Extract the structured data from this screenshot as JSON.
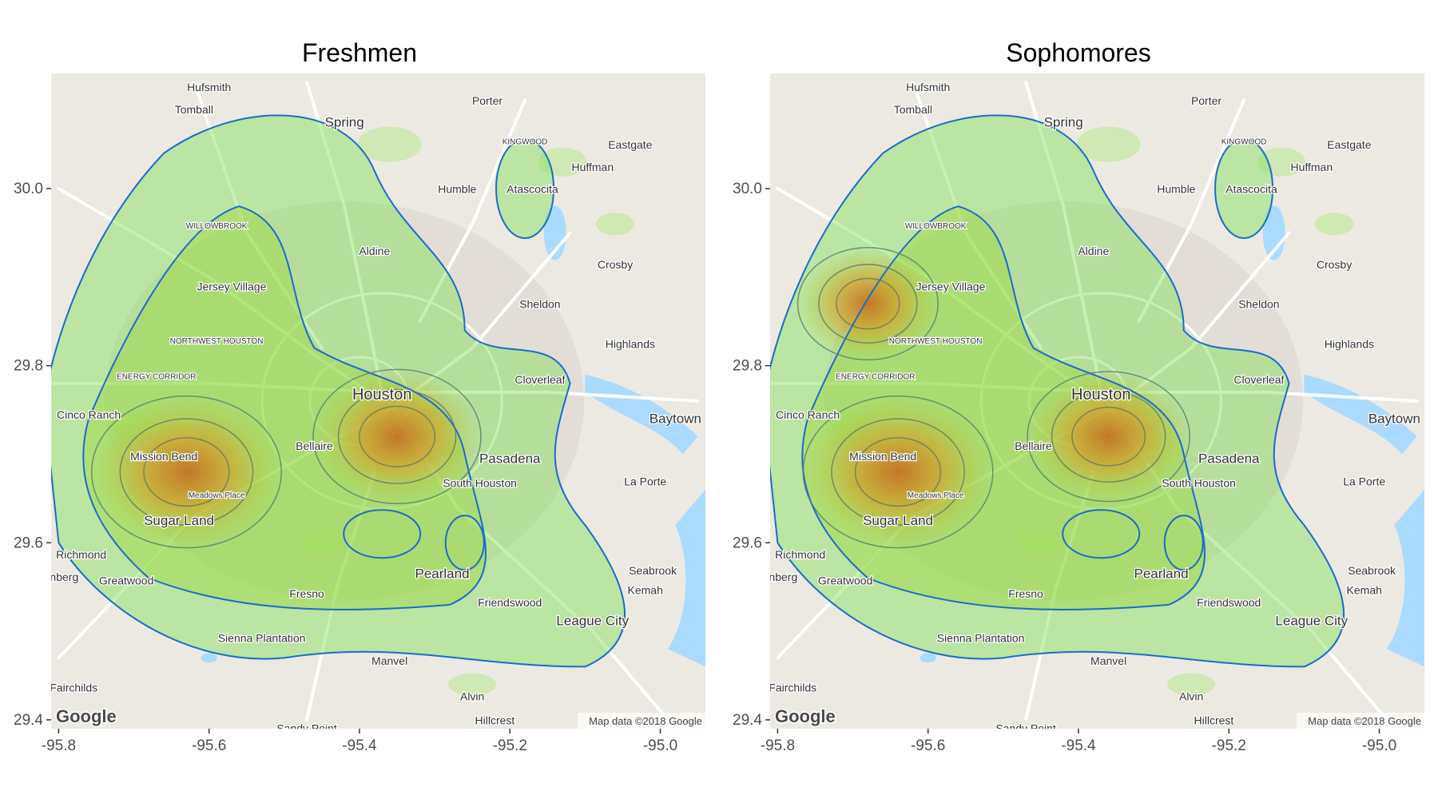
{
  "panels": [
    {
      "title": "Freshmen",
      "peaks": [
        {
          "lon": -95.63,
          "lat": 29.68,
          "strength": 1.0
        },
        {
          "lon": -95.35,
          "lat": 29.72,
          "strength": 0.8
        }
      ]
    },
    {
      "title": "Sophomores",
      "peaks": [
        {
          "lon": -95.64,
          "lat": 29.68,
          "strength": 1.0
        },
        {
          "lon": -95.36,
          "lat": 29.72,
          "strength": 0.75
        },
        {
          "lon": -95.68,
          "lat": 29.87,
          "strength": 0.55
        }
      ]
    }
  ],
  "axes": {
    "x_ticks": [
      "-95.8",
      "-95.6",
      "-95.4",
      "-95.2",
      "-95.0"
    ],
    "x_values": [
      -95.8,
      -95.6,
      -95.4,
      -95.2,
      -95.0
    ],
    "y_ticks": [
      "30.0",
      "29.8",
      "29.6",
      "29.4"
    ],
    "y_values": [
      30.0,
      29.8,
      29.6,
      29.4
    ],
    "xlim": [
      -95.81,
      -94.94
    ],
    "ylim": [
      29.39,
      30.13
    ]
  },
  "attribution": {
    "logo": "Google",
    "copyright": "Map data ©2018 Google"
  },
  "places": [
    {
      "name": "Hufsmith",
      "lon": -95.6,
      "lat": 30.11,
      "size": "sm"
    },
    {
      "name": "Tomball",
      "lon": -95.62,
      "lat": 30.085,
      "size": "sm"
    },
    {
      "name": "Porter",
      "lon": -95.23,
      "lat": 30.095,
      "size": "sm"
    },
    {
      "name": "Spring",
      "lon": -95.42,
      "lat": 30.07,
      "size": "md"
    },
    {
      "name": "Eastgate",
      "lon": -95.04,
      "lat": 30.045,
      "size": "sm"
    },
    {
      "name": "KINGWOOD",
      "lon": -95.18,
      "lat": 30.05,
      "size": "xs"
    },
    {
      "name": "Huffman",
      "lon": -95.09,
      "lat": 30.02,
      "size": "sm"
    },
    {
      "name": "Humble",
      "lon": -95.27,
      "lat": 29.995,
      "size": "sm"
    },
    {
      "name": "Atascocita",
      "lon": -95.17,
      "lat": 29.995,
      "size": "sm"
    },
    {
      "name": "WILLOWBROOK",
      "lon": -95.59,
      "lat": 29.955,
      "size": "xs"
    },
    {
      "name": "Aldine",
      "lon": -95.38,
      "lat": 29.925,
      "size": "sm"
    },
    {
      "name": "Crosby",
      "lon": -95.06,
      "lat": 29.91,
      "size": "sm"
    },
    {
      "name": "Jersey Village",
      "lon": -95.57,
      "lat": 29.885,
      "size": "sm"
    },
    {
      "name": "Sheldon",
      "lon": -95.16,
      "lat": 29.865,
      "size": "sm"
    },
    {
      "name": "NORTHWEST HOUSTON",
      "lon": -95.59,
      "lat": 29.825,
      "size": "xs"
    },
    {
      "name": "Highlands",
      "lon": -95.04,
      "lat": 29.82,
      "size": "sm"
    },
    {
      "name": "ENERGY CORRIDOR",
      "lon": -95.67,
      "lat": 29.785,
      "size": "xs"
    },
    {
      "name": "Cloverleaf",
      "lon": -95.16,
      "lat": 29.78,
      "size": "sm"
    },
    {
      "name": "Houston",
      "lon": -95.37,
      "lat": 29.762,
      "size": "lg"
    },
    {
      "name": "Cinco Ranch",
      "lon": -95.76,
      "lat": 29.74,
      "size": "sm"
    },
    {
      "name": "Baytown",
      "lon": -94.98,
      "lat": 29.735,
      "size": "md"
    },
    {
      "name": "Bellaire",
      "lon": -95.46,
      "lat": 29.705,
      "size": "sm"
    },
    {
      "name": "Mission Bend",
      "lon": -95.66,
      "lat": 29.693,
      "size": "sm"
    },
    {
      "name": "Pasadena",
      "lon": -95.2,
      "lat": 29.69,
      "size": "md"
    },
    {
      "name": "La Porte",
      "lon": -95.02,
      "lat": 29.665,
      "size": "sm"
    },
    {
      "name": "South Houston",
      "lon": -95.24,
      "lat": 29.663,
      "size": "sm"
    },
    {
      "name": "Meadows Place",
      "lon": -95.59,
      "lat": 29.651,
      "size": "xs"
    },
    {
      "name": "Sugar Land",
      "lon": -95.64,
      "lat": 29.62,
      "size": "md"
    },
    {
      "name": "Richmond",
      "lon": -95.77,
      "lat": 29.582,
      "size": "sm"
    },
    {
      "name": "Rosenberg",
      "lon": -95.81,
      "lat": 29.557,
      "size": "sm"
    },
    {
      "name": "Greatwood",
      "lon": -95.71,
      "lat": 29.553,
      "size": "sm"
    },
    {
      "name": "Seabrook",
      "lon": -95.01,
      "lat": 29.564,
      "size": "sm"
    },
    {
      "name": "Pearland",
      "lon": -95.29,
      "lat": 29.56,
      "size": "md"
    },
    {
      "name": "Fresno",
      "lon": -95.47,
      "lat": 29.538,
      "size": "sm"
    },
    {
      "name": "Kemah",
      "lon": -95.02,
      "lat": 29.542,
      "size": "sm"
    },
    {
      "name": "Friendswood",
      "lon": -95.2,
      "lat": 29.528,
      "size": "sm"
    },
    {
      "name": "League City",
      "lon": -95.09,
      "lat": 29.507,
      "size": "md"
    },
    {
      "name": "Sienna Plantation",
      "lon": -95.53,
      "lat": 29.488,
      "size": "sm"
    },
    {
      "name": "Manvel",
      "lon": -95.36,
      "lat": 29.462,
      "size": "sm"
    },
    {
      "name": "Alvin",
      "lon": -95.25,
      "lat": 29.422,
      "size": "sm"
    },
    {
      "name": "Fairchilds",
      "lon": -95.78,
      "lat": 29.432,
      "size": "sm"
    },
    {
      "name": "Hillcrest",
      "lon": -95.22,
      "lat": 29.395,
      "size": "sm"
    },
    {
      "name": "Sandy Point",
      "lon": -95.47,
      "lat": 29.386,
      "size": "sm"
    }
  ]
}
